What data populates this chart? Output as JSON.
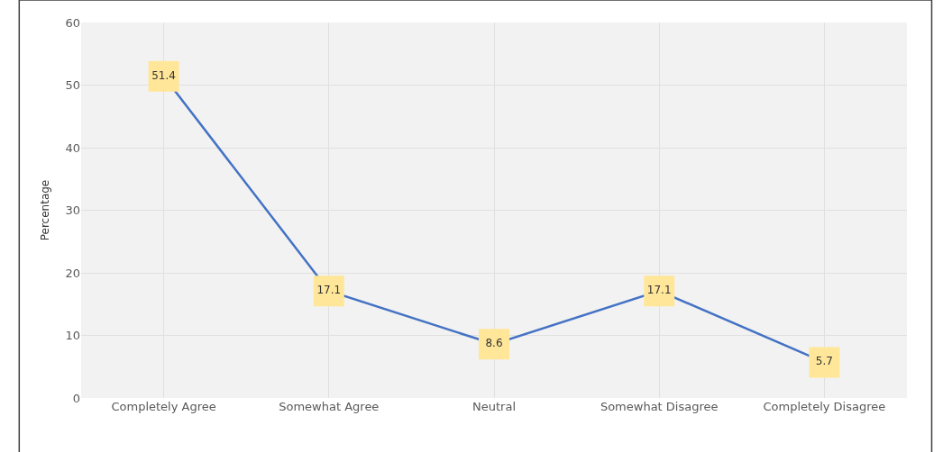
{
  "chart_data": {
    "type": "line",
    "ylabel": "Percentage",
    "categories": [
      "Completely Agree",
      "Somewhat Agree",
      "Neutral",
      "Somewhat Disagree",
      "Completely Disagree"
    ],
    "series": [
      {
        "color": "#4472c4",
        "values": [
          51.4,
          17.1,
          8.6,
          17.1,
          5.7
        ]
      }
    ],
    "ylim": [
      0,
      60
    ],
    "yticks": [
      0,
      10,
      20,
      30,
      40,
      50,
      60
    ],
    "grid": true,
    "data_labels": true,
    "marker": "square",
    "line_style": "solid"
  }
}
